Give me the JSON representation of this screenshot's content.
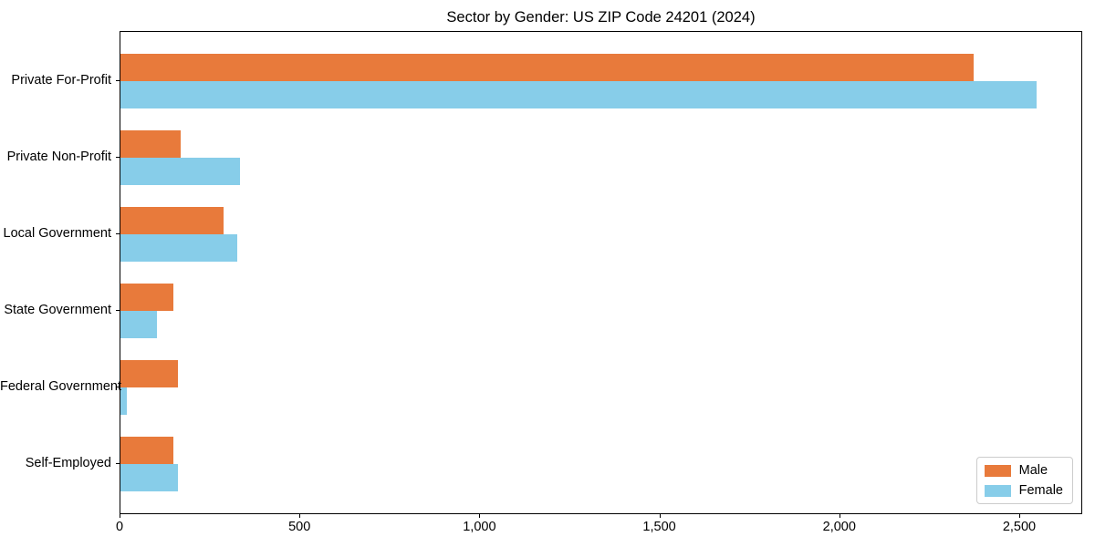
{
  "chart_data": {
    "type": "bar",
    "orientation": "horizontal",
    "title": "Sector by Gender: US ZIP Code 24201 (2024)",
    "categories": [
      "Private For-Profit",
      "Private Non-Profit",
      "Local Government",
      "State Government",
      "Federal Government",
      "Self-Employed"
    ],
    "series": [
      {
        "name": "Male",
        "color": "#e87a3b",
        "values": [
          2375,
          167,
          287,
          148,
          160,
          148
        ]
      },
      {
        "name": "Female",
        "color": "#87cde9",
        "values": [
          2550,
          334,
          326,
          101,
          18,
          161
        ]
      }
    ],
    "xlabel": "",
    "ylabel": "",
    "xlim": [
      0,
      2675
    ],
    "xticks": [
      0,
      500,
      1000,
      1500,
      2000,
      2500
    ],
    "xtick_labels": [
      "0",
      "500",
      "1,000",
      "1,500",
      "2,000",
      "2,500"
    ],
    "grid": false,
    "legend_position": "lower right"
  }
}
